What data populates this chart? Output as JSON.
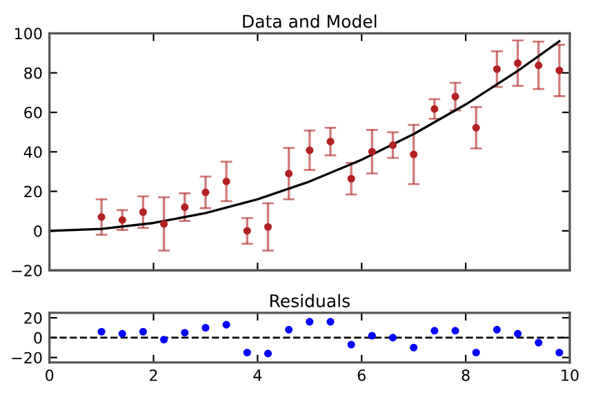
{
  "chart_data": [
    {
      "type": "scatter",
      "title": "Data and Model",
      "xlim": [
        0,
        10
      ],
      "xticks": [
        {
          "value": 0,
          "label": null
        },
        {
          "value": 2,
          "label": null
        },
        {
          "value": 4,
          "label": null
        },
        {
          "value": 6,
          "label": null
        },
        {
          "value": 8,
          "label": null
        },
        {
          "value": 10,
          "label": null
        }
      ],
      "ylim": [
        -20,
        100
      ],
      "yticks": [
        -20,
        0,
        20,
        40,
        60,
        80,
        100
      ],
      "tick_labels": "y",
      "grid": false,
      "marker": "circle",
      "series": [
        {
          "color": "#b22222",
          "x": [
            1.0,
            1.4,
            1.8,
            2.2,
            2.6,
            3.0,
            3.4,
            3.8,
            4.2,
            4.6,
            5.0,
            5.4,
            5.8,
            6.2,
            6.6,
            7.0,
            7.4,
            7.8,
            8.2,
            8.6,
            9.0,
            9.4,
            9.8
          ],
          "values": [
            7,
            5.5,
            9.5,
            3.5,
            12,
            19.5,
            25,
            0,
            2,
            29,
            40.8,
            45.2,
            26.4,
            40.1,
            43.4,
            38.7,
            61.7,
            68,
            52.2,
            81.9,
            84.9,
            83.8,
            81.2
          ],
          "errors": [
            9,
            5,
            8,
            13.5,
            7,
            8,
            10,
            6.5,
            12,
            13,
            10,
            7,
            8,
            11,
            6.5,
            15,
            5,
            7,
            10.5,
            9,
            11.5,
            12,
            13
          ]
        },
        {
          "type": "line",
          "color": "#000000",
          "line_style": "solid",
          "marker": "none",
          "x": [
            0,
            1,
            2,
            3,
            4,
            5,
            6,
            7,
            8,
            9,
            9.8
          ],
          "values": [
            0,
            1,
            4,
            9,
            16,
            25,
            36,
            49,
            64,
            81,
            96
          ]
        }
      ]
    },
    {
      "type": "scatter",
      "title": "Residuals",
      "xlim": [
        0,
        10
      ],
      "xticks": [
        0,
        2,
        4,
        6,
        8,
        10
      ],
      "ylim": [
        -25,
        25
      ],
      "yticks": [
        -20,
        0,
        20
      ],
      "grid": false,
      "marker": "circle",
      "ref_lines": [
        {
          "axis": "y",
          "value": 0,
          "color": "#000000",
          "line_style": "dashed"
        }
      ],
      "series": [
        {
          "color": "#0000ff",
          "x": [
            1.0,
            1.4,
            1.8,
            2.2,
            2.6,
            3.0,
            3.4,
            3.8,
            4.2,
            4.6,
            5.0,
            5.4,
            5.8,
            6.2,
            6.6,
            7.0,
            7.4,
            7.8,
            8.2,
            8.6,
            9.0,
            9.4,
            9.8
          ],
          "values": [
            6,
            4,
            6,
            -2,
            5,
            10,
            13,
            -15,
            -16,
            8,
            16,
            16,
            -7,
            2,
            0,
            -10,
            7,
            7,
            -15,
            8,
            4,
            -5,
            -15
          ]
        }
      ]
    }
  ]
}
